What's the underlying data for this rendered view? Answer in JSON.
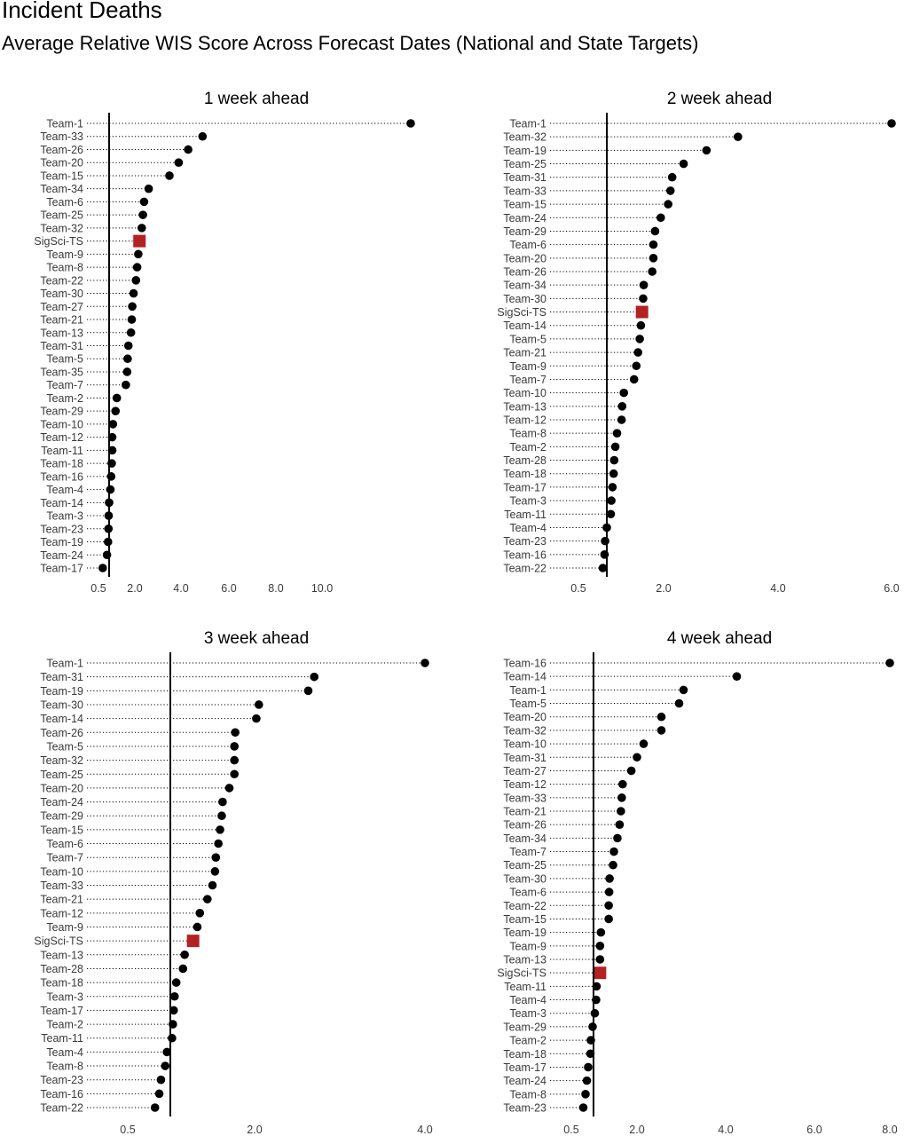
{
  "title": "Incident Deaths",
  "subtitle": "Average Relative WIS Score Across Forecast Dates (National and State Targets)",
  "colors": {
    "highlight": "#b22222",
    "point": "#000000"
  },
  "chart_data": [
    {
      "type": "dot",
      "title": "1 week ahead",
      "reference_line": 1.0,
      "x_ticks": [
        "0.5",
        "2.0",
        "4.0",
        "6.0",
        "8.0",
        "10.0"
      ],
      "x_tick_values": [
        0.5,
        2.0,
        4.0,
        6.0,
        8.0,
        10.0
      ],
      "xlim": [
        -0.5,
        15.0
      ],
      "highlight": "SigSci-TS",
      "categories": [
        "Team-1",
        "Team-33",
        "Team-26",
        "Team-20",
        "Team-15",
        "Team-34",
        "Team-6",
        "Team-25",
        "Team-32",
        "SigSci-TS",
        "Team-9",
        "Team-8",
        "Team-22",
        "Team-30",
        "Team-27",
        "Team-21",
        "Team-13",
        "Team-31",
        "Team-5",
        "Team-35",
        "Team-7",
        "Team-2",
        "Team-29",
        "Team-10",
        "Team-12",
        "Team-11",
        "Team-18",
        "Team-16",
        "Team-4",
        "Team-14",
        "Team-3",
        "Team-23",
        "Team-19",
        "Team-24",
        "Team-17"
      ],
      "values": [
        14.2,
        4.9,
        4.3,
        3.9,
        3.5,
        2.6,
        2.4,
        2.35,
        2.3,
        2.2,
        2.15,
        2.1,
        2.05,
        1.95,
        1.9,
        1.88,
        1.85,
        1.75,
        1.72,
        1.7,
        1.65,
        1.3,
        1.25,
        1.15,
        1.12,
        1.12,
        1.1,
        1.08,
        1.05,
        1.0,
        0.98,
        0.97,
        0.95,
        0.9,
        0.7
      ]
    },
    {
      "type": "dot",
      "title": "2 week ahead",
      "reference_line": 1.0,
      "x_ticks": [
        "0.5",
        "2.0",
        "4.0",
        "6.0"
      ],
      "x_tick_values": [
        0.5,
        2.0,
        4.0,
        6.0
      ],
      "xlim": [
        -0.05,
        6.0
      ],
      "highlight": "SigSci-TS",
      "categories": [
        "Team-1",
        "Team-32",
        "Team-19",
        "Team-25",
        "Team-31",
        "Team-33",
        "Team-15",
        "Team-24",
        "Team-29",
        "Team-6",
        "Team-20",
        "Team-26",
        "Team-34",
        "Team-30",
        "SigSci-TS",
        "Team-14",
        "Team-5",
        "Team-21",
        "Team-9",
        "Team-7",
        "Team-10",
        "Team-13",
        "Team-12",
        "Team-8",
        "Team-2",
        "Team-28",
        "Team-18",
        "Team-17",
        "Team-3",
        "Team-11",
        "Team-4",
        "Team-23",
        "Team-16",
        "Team-22"
      ],
      "values": [
        6.0,
        3.3,
        2.75,
        2.35,
        2.15,
        2.12,
        2.08,
        1.95,
        1.85,
        1.82,
        1.82,
        1.8,
        1.65,
        1.64,
        1.62,
        1.6,
        1.58,
        1.55,
        1.52,
        1.48,
        1.3,
        1.27,
        1.26,
        1.18,
        1.15,
        1.13,
        1.12,
        1.1,
        1.08,
        1.07,
        1.0,
        0.97,
        0.96,
        0.93
      ]
    },
    {
      "type": "dot",
      "title": "3 week ahead",
      "reference_line": 1.0,
      "x_ticks": [
        "0.5",
        "2.0",
        "4.0"
      ],
      "x_tick_values": [
        0.5,
        2.0,
        4.0
      ],
      "xlim": [
        0.0,
        4.0
      ],
      "highlight": "SigSci-TS",
      "categories": [
        "Team-1",
        "Team-31",
        "Team-19",
        "Team-30",
        "Team-14",
        "Team-26",
        "Team-5",
        "Team-32",
        "Team-25",
        "Team-20",
        "Team-24",
        "Team-29",
        "Team-15",
        "Team-6",
        "Team-7",
        "Team-10",
        "Team-33",
        "Team-21",
        "Team-12",
        "Team-9",
        "SigSci-TS",
        "Team-13",
        "Team-28",
        "Team-18",
        "Team-3",
        "Team-17",
        "Team-2",
        "Team-11",
        "Team-4",
        "Team-8",
        "Team-23",
        "Team-16",
        "Team-22"
      ],
      "values": [
        4.0,
        2.7,
        2.63,
        2.05,
        2.02,
        1.77,
        1.76,
        1.76,
        1.76,
        1.7,
        1.62,
        1.61,
        1.59,
        1.57,
        1.54,
        1.53,
        1.5,
        1.44,
        1.35,
        1.32,
        1.27,
        1.17,
        1.15,
        1.07,
        1.05,
        1.04,
        1.03,
        1.02,
        0.96,
        0.94,
        0.89,
        0.87,
        0.82
      ]
    },
    {
      "type": "dot",
      "title": "4 week ahead",
      "reference_line": 1.0,
      "x_ticks": [
        "0.5",
        "2.0",
        "4.0",
        "6.0",
        "8.0"
      ],
      "x_tick_values": [
        0.5,
        2.0,
        4.0,
        6.0,
        8.0
      ],
      "xlim": [
        -0.5,
        8.0
      ],
      "highlight": "SigSci-TS",
      "categories": [
        "Team-16",
        "Team-14",
        "Team-1",
        "Team-5",
        "Team-20",
        "Team-32",
        "Team-10",
        "Team-31",
        "Team-27",
        "Team-12",
        "Team-33",
        "Team-21",
        "Team-26",
        "Team-34",
        "Team-7",
        "Team-25",
        "Team-30",
        "Team-6",
        "Team-22",
        "Team-15",
        "Team-19",
        "Team-9",
        "Team-13",
        "SigSci-TS",
        "Team-11",
        "Team-4",
        "Team-3",
        "Team-29",
        "Team-2",
        "Team-18",
        "Team-17",
        "Team-24",
        "Team-8",
        "Team-23"
      ],
      "values": [
        8.0,
        4.25,
        3.05,
        2.95,
        2.55,
        2.55,
        2.15,
        2.0,
        1.87,
        1.67,
        1.65,
        1.63,
        1.6,
        1.55,
        1.47,
        1.45,
        1.37,
        1.36,
        1.35,
        1.35,
        1.17,
        1.15,
        1.15,
        1.15,
        1.07,
        1.06,
        1.03,
        0.98,
        0.94,
        0.93,
        0.88,
        0.85,
        0.82,
        0.77
      ]
    }
  ]
}
